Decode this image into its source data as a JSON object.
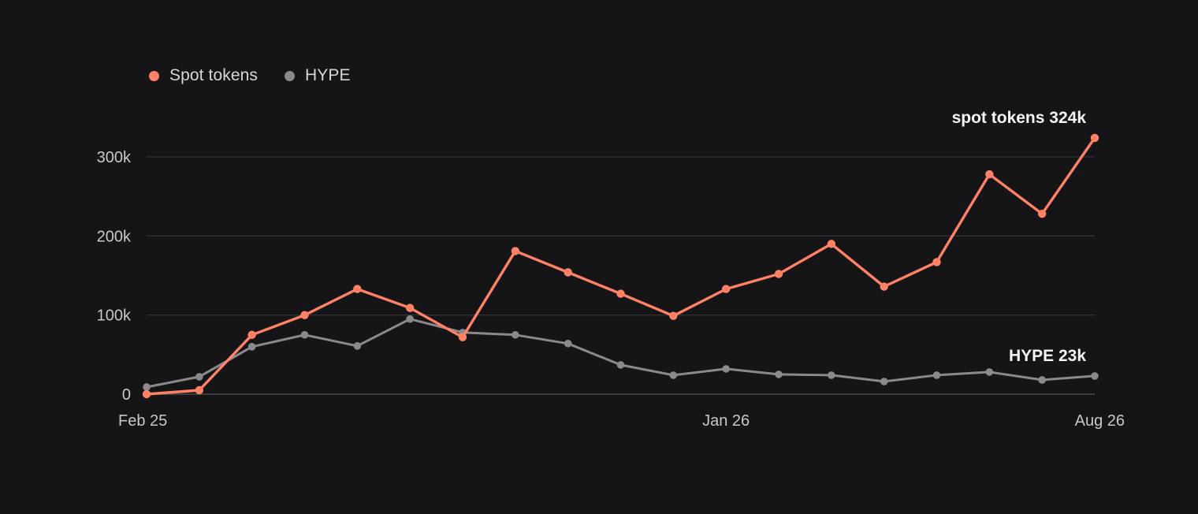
{
  "legend": {
    "items": [
      {
        "label": "Spot tokens",
        "color": "#ff8166"
      },
      {
        "label": "HYPE",
        "color": "#8a8a8e"
      }
    ]
  },
  "chart_data": {
    "type": "line",
    "title": "",
    "xlabel": "",
    "ylabel": "",
    "x_tick_labels": [
      "Feb 25",
      "Jan 26",
      "Aug 26"
    ],
    "x_tick_positions": [
      0,
      11,
      18
    ],
    "y_ticks": [
      0,
      100000,
      200000,
      300000
    ],
    "y_tick_labels": [
      "0",
      "100k",
      "200k",
      "300k"
    ],
    "ylim": [
      0,
      324000
    ],
    "grid": true,
    "legend_position": "top-left",
    "series": [
      {
        "name": "Spot tokens",
        "color": "#ff8166",
        "values": [
          0,
          5000,
          75000,
          100000,
          133000,
          109000,
          72000,
          181000,
          154000,
          127000,
          99000,
          133000,
          152000,
          190000,
          136000,
          167000,
          278000,
          228000,
          324000
        ],
        "end_label": "spot tokens 324k"
      },
      {
        "name": "HYPE",
        "color": "#8a8a8e",
        "values": [
          9000,
          22000,
          60000,
          75000,
          61000,
          95000,
          78000,
          75000,
          64000,
          37000,
          24000,
          32000,
          25000,
          24000,
          16000,
          24000,
          28000,
          18000,
          23000
        ],
        "end_label": "HYPE 23k"
      }
    ]
  }
}
